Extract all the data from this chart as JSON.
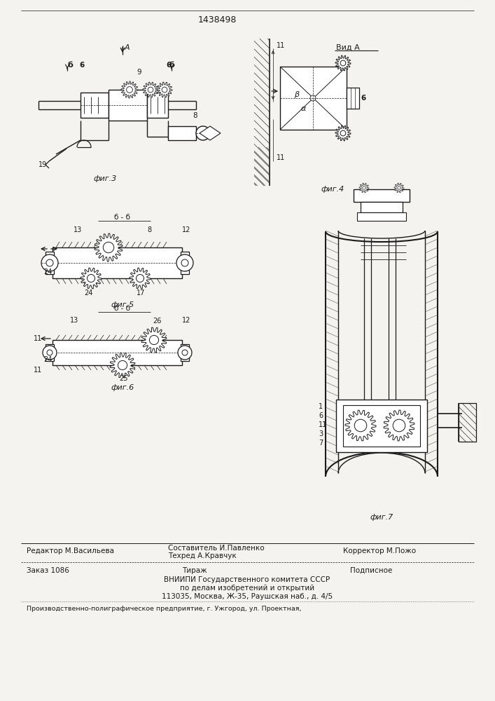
{
  "background_color": "#f5f3ef",
  "text_color": "#1a1a1a",
  "patent_number": "1438498",
  "fig3_label": "фиг.3",
  "fig4_label": "фиг.4",
  "fig5_label": "фиг.5",
  "fig6_label": "фиг.6",
  "fig7_label": "фиг.7",
  "vid_a_label": "Вид A",
  "editor_line": "Редактор М.Васильева",
  "composer_line": "Составитель И.Павленко",
  "techred_line": "Техред А.Кравчук",
  "corrector_line": "Корректор М.Пожо",
  "order_line": "Заказ 1086",
  "tirazh_line": "Тираж",
  "podpisnoe_line": "Подписное",
  "vnipi_line": "ВНИИПИ Государственного комитета СССР",
  "po_delam_line": "по делам изобретений и открытий",
  "address_line": "113035, Москва, Ж-35, Раушская наб., д. 4/5",
  "printer_line": "Производственно-полиграфическое предприятие, г. Ужгород, ул. Проектная,"
}
